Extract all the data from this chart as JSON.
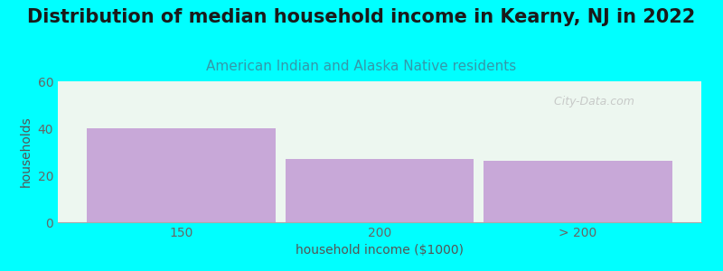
{
  "title": "Distribution of median household income in Kearny, NJ in 2022",
  "subtitle": "American Indian and Alaska Native residents",
  "xlabel": "household income ($1000)",
  "ylabel": "households",
  "categories": [
    "150",
    "200",
    "> 200"
  ],
  "values": [
    40,
    27,
    26
  ],
  "bar_color": "#c8a8d8",
  "background_color": "#00ffff",
  "plot_bg_color": "#edf7f0",
  "ylim": [
    0,
    60
  ],
  "yticks": [
    0,
    20,
    40,
    60
  ],
  "title_fontsize": 15,
  "subtitle_fontsize": 11,
  "label_fontsize": 10,
  "tick_fontsize": 10,
  "bar_width": 0.95,
  "watermark": "  City-Data.com"
}
